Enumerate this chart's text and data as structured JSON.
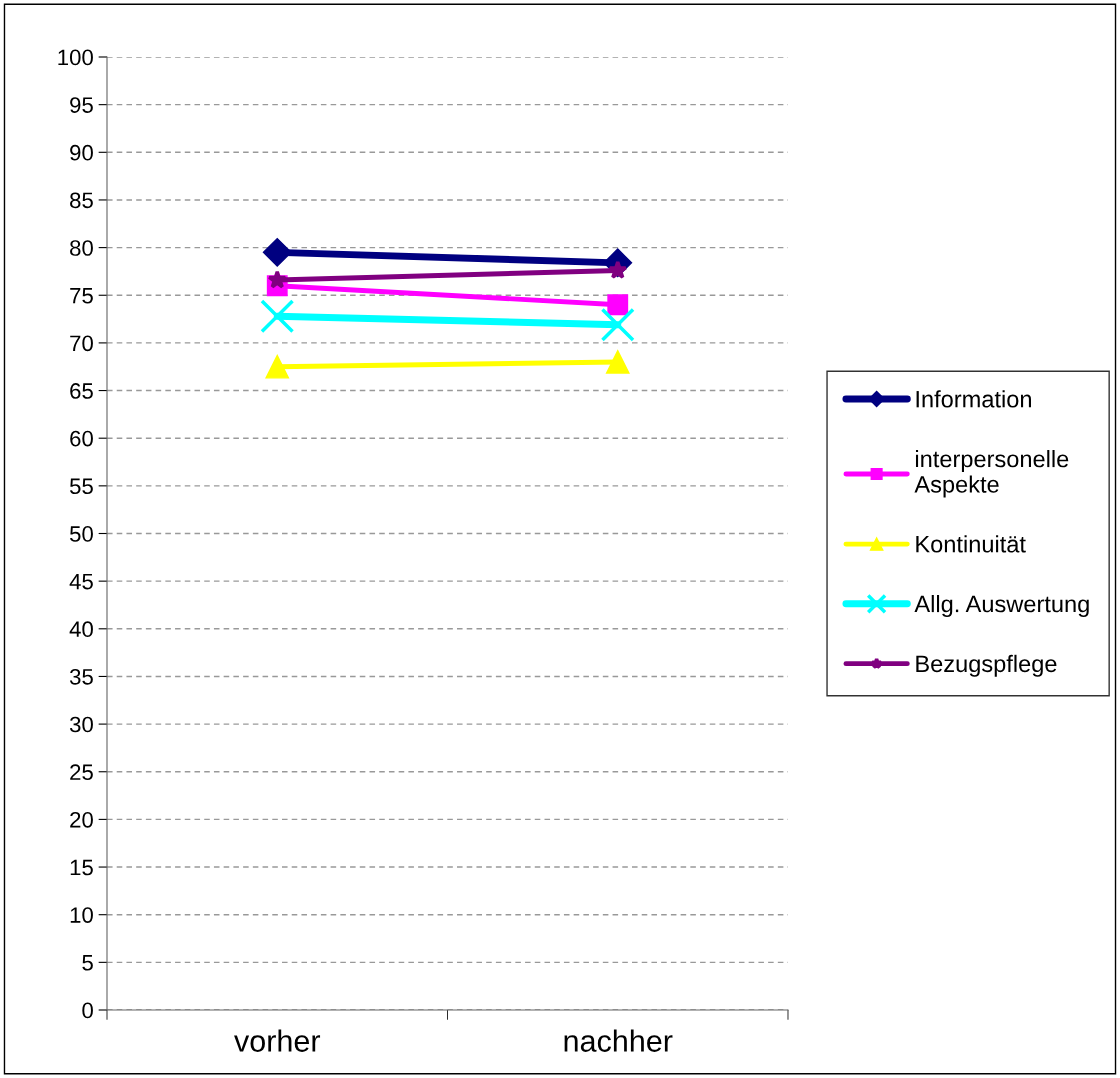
{
  "chart_data": {
    "type": "line",
    "categories": [
      "vorher",
      "nachher"
    ],
    "series": [
      {
        "name": "Information",
        "color": "#000080",
        "marker": "diamond",
        "values": [
          79.5,
          78.4
        ]
      },
      {
        "name": "interpersonelle\nAspekte",
        "color": "#ff00ff",
        "marker": "square",
        "values": [
          76.0,
          74.0
        ]
      },
      {
        "name": "Kontinuität",
        "color": "#ffff00",
        "marker": "triangle",
        "values": [
          67.5,
          68.0
        ]
      },
      {
        "name": "Allg. Auswertung",
        "color": "#00ffff",
        "marker": "cross",
        "values": [
          72.8,
          71.9
        ]
      },
      {
        "name": "Bezugspflege",
        "color": "#800080",
        "marker": "star",
        "values": [
          76.6,
          77.6
        ]
      }
    ],
    "ylim": [
      0,
      100
    ],
    "yticks": [
      0,
      5,
      10,
      15,
      20,
      25,
      30,
      35,
      40,
      45,
      50,
      55,
      60,
      65,
      70,
      75,
      80,
      85,
      90,
      95,
      100
    ],
    "grid": "y",
    "legend": "right",
    "line_style": "solid"
  }
}
